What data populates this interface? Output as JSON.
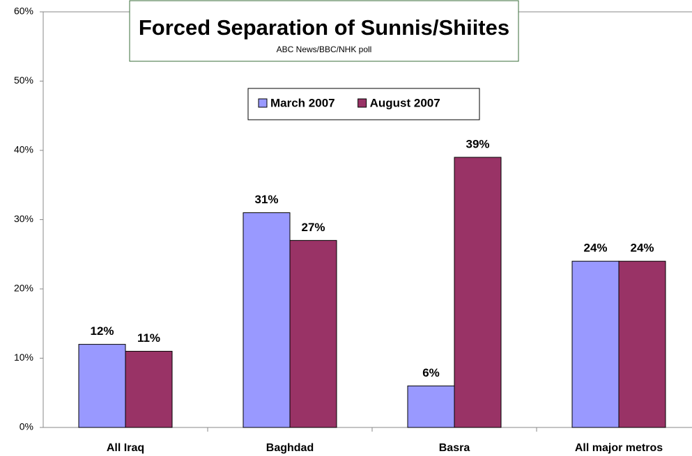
{
  "chart_data": {
    "type": "bar",
    "title": "Forced Separation of Sunnis/Shiites",
    "subtitle": "ABC News/BBC/NHK poll",
    "categories": [
      "All Iraq",
      "Baghdad",
      "Basra",
      "All major metros"
    ],
    "series": [
      {
        "name": "March 2007",
        "color": "#9999ff",
        "values": [
          12,
          31,
          6,
          24
        ],
        "value_labels": [
          "12%",
          "31%",
          "6%",
          "24%"
        ]
      },
      {
        "name": "August 2007",
        "color": "#993366",
        "values": [
          11,
          27,
          39,
          24
        ],
        "value_labels": [
          "11%",
          "27%",
          "39%",
          "24%"
        ]
      }
    ],
    "ylim": [
      0,
      60
    ],
    "yticks": [
      {
        "value": 0,
        "label": "0%"
      },
      {
        "value": 10,
        "label": "10%"
      },
      {
        "value": 20,
        "label": "20%"
      },
      {
        "value": 30,
        "label": "30%"
      },
      {
        "value": 40,
        "label": "40%"
      },
      {
        "value": 50,
        "label": "50%"
      },
      {
        "value": 60,
        "label": "60%"
      }
    ],
    "legend": "top"
  }
}
